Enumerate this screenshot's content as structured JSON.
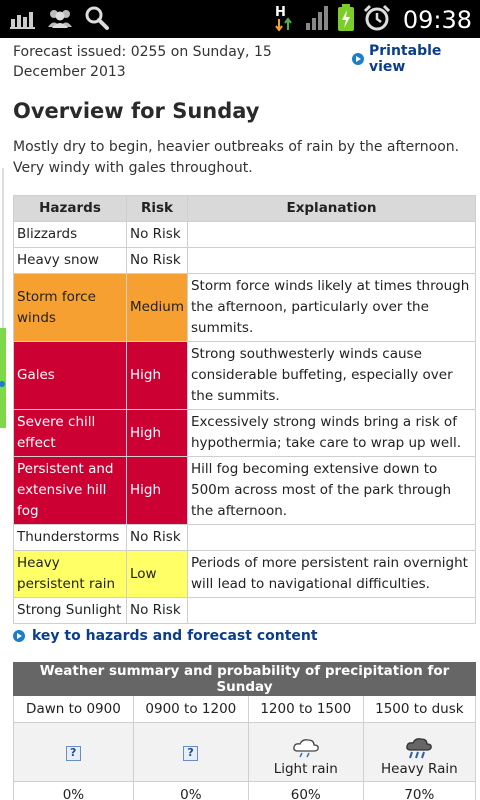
{
  "status_bar": {
    "time": "09:38",
    "icons": [
      "bar-chart-icon",
      "group-icon",
      "search-icon",
      "hspa-data-icon",
      "signal-icon",
      "battery-charging-icon",
      "alarm-icon"
    ],
    "network_label": "H"
  },
  "header": {
    "issued": "Forecast issued: 0255 on Sunday, 15 December 2013",
    "printable_label": "Printable view"
  },
  "overview": {
    "title": "Overview for Sunday",
    "text": "Mostly dry to begin, heavier outbreaks of rain by the afternoon. Very windy with gales throughout."
  },
  "hazards_table": {
    "headers": [
      "Hazards",
      "Risk",
      "Explanation"
    ],
    "rows": [
      {
        "hazard": "Blizzards",
        "risk": "No Risk",
        "explanation": ""
      },
      {
        "hazard": "Heavy snow",
        "risk": "No Risk",
        "explanation": ""
      },
      {
        "hazard": "Storm force winds",
        "risk": "Medium",
        "explanation": "Storm force winds likely at times through the afternoon, particularly over the summits."
      },
      {
        "hazard": "Gales",
        "risk": "High",
        "explanation": "Strong southwesterly winds cause considerable buffeting, especially over the summits."
      },
      {
        "hazard": "Severe chill effect",
        "risk": "High",
        "explanation": "Excessively strong winds bring a risk of hypothermia; take care to wrap up well."
      },
      {
        "hazard": "Persistent and extensive hill fog",
        "risk": "High",
        "explanation": "Hill fog becoming extensive down to 500m across most of the park through the afternoon."
      },
      {
        "hazard": "Thunderstorms",
        "risk": "No Risk",
        "explanation": ""
      },
      {
        "hazard": "Heavy persistent rain",
        "risk": "Low",
        "explanation": "Periods of more persistent rain overnight will lead to navigational difficulties."
      },
      {
        "hazard": "Strong Sunlight",
        "risk": "No Risk",
        "explanation": ""
      }
    ],
    "risk_colors": {
      "Medium": "#f7a032",
      "High": "#cc0033",
      "Low": "#ffff66"
    }
  },
  "key_link": {
    "label": "key to hazards and forecast content"
  },
  "weather_summary": {
    "title": "Weather summary and probability of precipitation for Sunday",
    "periods": [
      "Dawn to 0900",
      "0900 to 1200",
      "1200 to 1500",
      "1500 to dusk"
    ],
    "conditions": [
      {
        "icon": "missing-image-icon",
        "label": ""
      },
      {
        "icon": "missing-image-icon",
        "label": ""
      },
      {
        "icon": "light-rain-icon",
        "label": "Light rain"
      },
      {
        "icon": "heavy-rain-icon",
        "label": "Heavy Rain"
      }
    ],
    "probabilities": [
      "0%",
      "0%",
      "60%",
      "70%"
    ]
  }
}
